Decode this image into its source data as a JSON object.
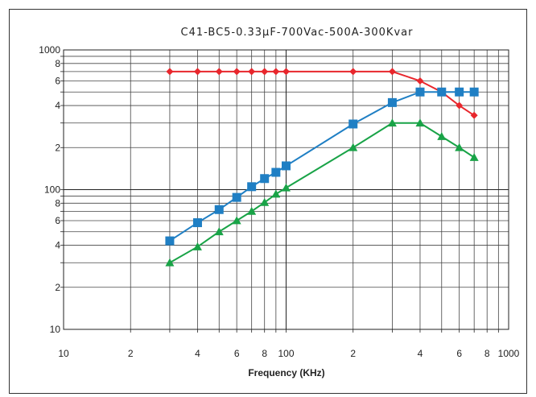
{
  "chart_data": {
    "type": "line",
    "title": "C41-BC5-0.33μF-700Vac-500A-300Kvar",
    "xlabel": "Frequency (KHz)",
    "ylabel": "",
    "xscale": "log",
    "yscale": "log",
    "xlim": [
      10,
      1000
    ],
    "ylim": [
      10,
      1000
    ],
    "grid": true,
    "x_tick_labels": [
      {
        "v": 10,
        "t": "10"
      },
      {
        "v": 20,
        "t": "2"
      },
      {
        "v": 40,
        "t": "4"
      },
      {
        "v": 60,
        "t": "6"
      },
      {
        "v": 80,
        "t": "8"
      },
      {
        "v": 100,
        "t": "100"
      },
      {
        "v": 200,
        "t": "2"
      },
      {
        "v": 400,
        "t": "4"
      },
      {
        "v": 600,
        "t": "6"
      },
      {
        "v": 800,
        "t": "8"
      },
      {
        "v": 1000,
        "t": "1000"
      }
    ],
    "y_tick_labels": [
      {
        "v": 10,
        "t": "10"
      },
      {
        "v": 20,
        "t": "2"
      },
      {
        "v": 40,
        "t": "4"
      },
      {
        "v": 60,
        "t": "6"
      },
      {
        "v": 80,
        "t": "8"
      },
      {
        "v": 100,
        "t": "100"
      },
      {
        "v": 200,
        "t": "2"
      },
      {
        "v": 400,
        "t": "4"
      },
      {
        "v": 600,
        "t": "6"
      },
      {
        "v": 800,
        "t": "8"
      },
      {
        "v": 1000,
        "t": "1000"
      }
    ],
    "series": [
      {
        "color": "#e8272d",
        "marker": "diamond",
        "x": [
          30,
          40,
          50,
          60,
          70,
          80,
          90,
          100,
          200,
          300,
          400,
          500,
          600,
          700
        ],
        "values": [
          700,
          700,
          700,
          700,
          700,
          700,
          700,
          700,
          700,
          700,
          600,
          500,
          400,
          340
        ]
      },
      {
        "color": "#1f7fc4",
        "marker": "square",
        "x": [
          30,
          40,
          50,
          60,
          70,
          80,
          90,
          100,
          200,
          300,
          400,
          500,
          600,
          700
        ],
        "values": [
          43,
          58,
          72,
          88,
          105,
          120,
          133,
          148,
          295,
          420,
          500,
          500,
          500,
          500
        ]
      },
      {
        "color": "#19a347",
        "marker": "triangle",
        "x": [
          30,
          40,
          50,
          60,
          70,
          80,
          90,
          100,
          200,
          300,
          400,
          500,
          600,
          700
        ],
        "values": [
          30,
          39,
          50,
          60,
          70,
          81,
          93,
          103,
          200,
          300,
          300,
          240,
          200,
          170
        ]
      }
    ]
  }
}
